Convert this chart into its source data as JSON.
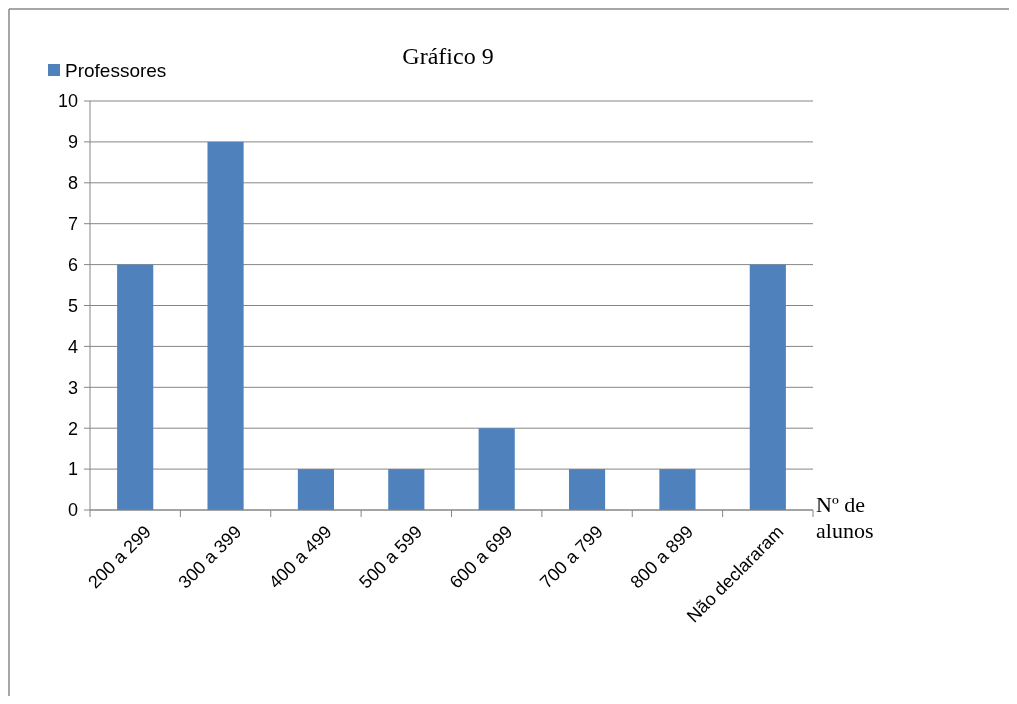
{
  "chart_data": {
    "type": "bar",
    "title": "Gráfico 9",
    "xlabel": "Nº de alunos",
    "categories": [
      "200 a 299",
      "300 a 399",
      "400 a 499",
      "500 a 599",
      "600 a 699",
      "700 a 799",
      "800 a 899",
      "Não declararam"
    ],
    "series": [
      {
        "name": "Professores",
        "color": "#4f81bd",
        "values": [
          6,
          9,
          1,
          1,
          2,
          1,
          1,
          6
        ]
      }
    ],
    "ylim": [
      0,
      10
    ],
    "yticks": [
      0,
      1,
      2,
      3,
      4,
      5,
      6,
      7,
      8,
      9,
      10
    ],
    "grid": "y",
    "legend": "top left"
  }
}
